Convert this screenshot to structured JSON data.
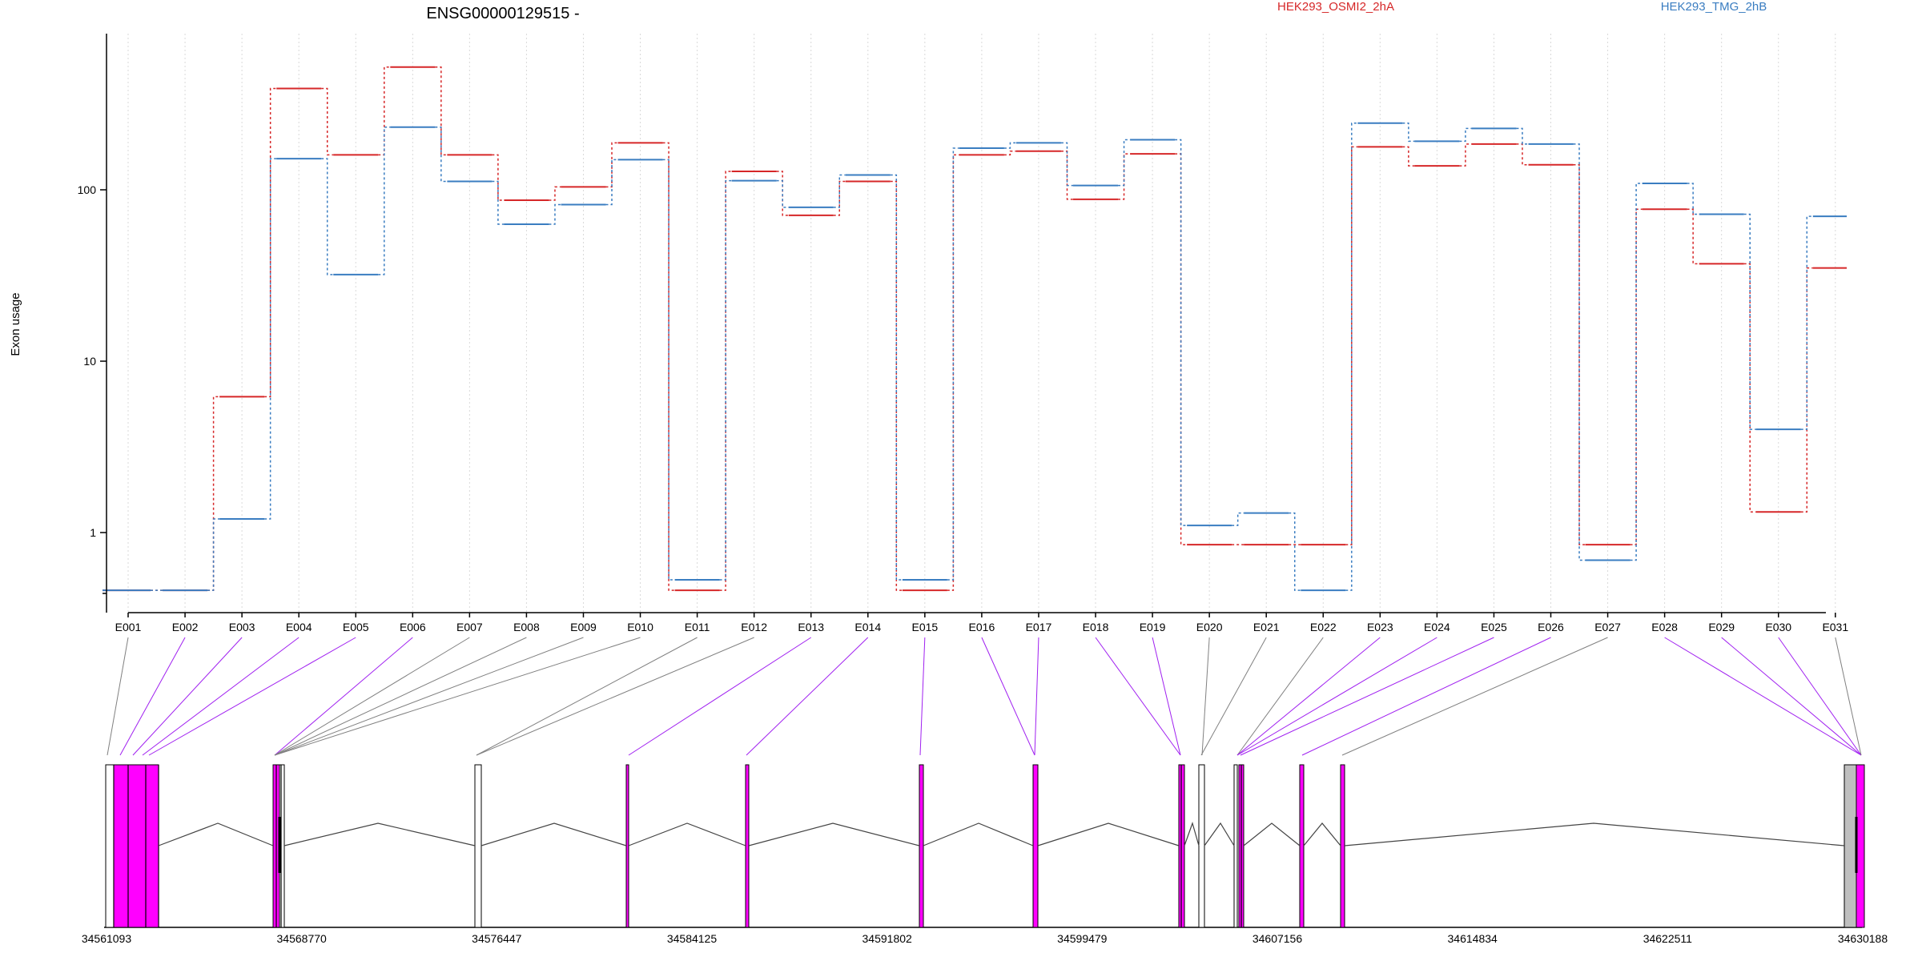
{
  "chart_data": {
    "type": "line",
    "title": "ENSG00000129515 -",
    "ylabel": "Exon usage",
    "xlabel": "",
    "yscale": "log",
    "ylim": [
      0.38,
      780
    ],
    "yticks": [
      1,
      10,
      100
    ],
    "grid": "vertical dotted",
    "legend_placement": "top",
    "categories": [
      "E001",
      "E002",
      "E003",
      "E004",
      "E005",
      "E006",
      "E007",
      "E008",
      "E009",
      "E010",
      "E011",
      "E012",
      "E013",
      "E014",
      "E015",
      "E016",
      "E017",
      "E018",
      "E019",
      "E020",
      "E021",
      "E022",
      "E023",
      "E024",
      "E025",
      "E026",
      "E027",
      "E028",
      "E029",
      "E030",
      "E031"
    ],
    "series": [
      {
        "name": "HEK293_OSMI2_2hA",
        "color": "#d62728",
        "values": [
          0.46,
          0.46,
          6.2,
          390,
          160,
          520,
          160,
          87,
          104,
          188,
          0.46,
          128,
          71,
          112,
          0.46,
          160,
          168,
          88,
          162,
          0.85,
          0.85,
          0.85,
          178,
          138,
          185,
          140,
          0.85,
          77,
          37,
          1.32,
          35
        ]
      },
      {
        "name": "HEK293_TMG_2hB",
        "color": "#3a7dc1",
        "values": [
          0.46,
          0.46,
          1.2,
          152,
          32,
          232,
          112,
          63,
          82,
          150,
          0.53,
          113,
          79,
          122,
          0.53,
          175,
          188,
          106,
          196,
          1.1,
          1.3,
          0.46,
          245,
          192,
          228,
          185,
          0.69,
          109,
          72,
          4.0,
          70
        ]
      }
    ]
  },
  "gene_model": {
    "coordinate_labels": [
      "34561093",
      "34568770",
      "34576447",
      "34584125",
      "34591802",
      "34599479",
      "34607156",
      "34614834",
      "34622511",
      "34630188"
    ],
    "highlight_color": "#ff00ff",
    "exon_color": "#ffffff",
    "terminal_exon_color": "#bfbfbf",
    "connector_colors": {
      "used": "#a020f0",
      "unused": "#808080"
    }
  }
}
